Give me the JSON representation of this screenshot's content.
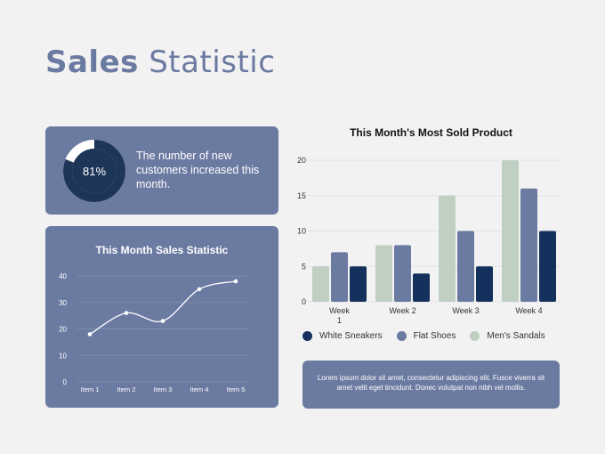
{
  "header": {
    "title_bold": "Sales",
    "title_rest": "Statistic"
  },
  "kpi": {
    "percent_value": 81,
    "percent_label": "81%",
    "description": "The number of new customers increased this month.",
    "colors": {
      "ring": "#1d3557",
      "track": "#ffffff",
      "center": "#1d3557"
    }
  },
  "note": {
    "text": "Lorem ipsum dolor sit amet, consectetur adipiscing elit. Fusce viverra sit amet velit eget tincidunt. Donec volutpat non nibh vel mollis."
  },
  "chart_data": [
    {
      "type": "line",
      "title": "This Month Sales Statistic",
      "categories": [
        "Item 1",
        "Item 2",
        "Item 3",
        "Item 4",
        "Item 5"
      ],
      "values": [
        18,
        26,
        23,
        35,
        38
      ],
      "yticks": [
        0,
        10,
        20,
        30,
        40
      ],
      "ylim": [
        0,
        40
      ],
      "grid": true,
      "colors": {
        "line": "#ffffff",
        "text": "#ffffff"
      }
    },
    {
      "type": "bar",
      "title": "This Month's Most Sold Product",
      "categories": [
        "Week 1",
        "Week 2",
        "Week 3",
        "Week 4"
      ],
      "series": [
        {
          "name": "White Sneakers",
          "color": "#13315c",
          "values": [
            5,
            4,
            5,
            10
          ]
        },
        {
          "name": "Flat Shoes",
          "color": "#6b7aa1",
          "values": [
            7,
            8,
            10,
            16
          ]
        },
        {
          "name": "Men's Sandals",
          "color": "#bfd0c3",
          "values": [
            5,
            8,
            15,
            20
          ]
        }
      ],
      "yticks": [
        0,
        5,
        10,
        15,
        20
      ],
      "ylim": [
        0,
        20
      ],
      "grid": true,
      "legend": "bottom"
    }
  ]
}
